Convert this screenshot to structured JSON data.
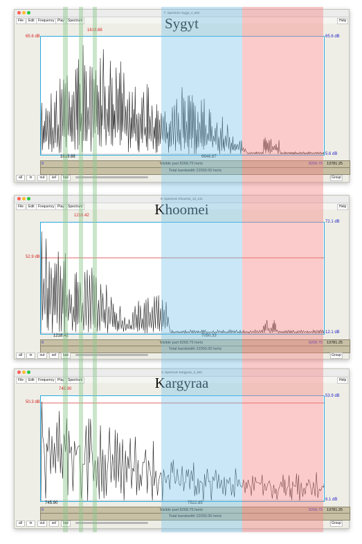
{
  "menu": [
    "File",
    "Edit",
    "Frequency",
    "Play",
    "Spectrum"
  ],
  "help_label": "Help",
  "bottom_buttons": [
    "all",
    "in",
    "out",
    "sel",
    "bak"
  ],
  "group_label": "Group",
  "overlay_colors": {
    "green": "#b8deb8",
    "blue": "#bfe4f4",
    "red": "#fbc7c7",
    "red_line": "#e08080"
  },
  "windows": [
    {
      "title": "7. Spectrum Sygyt_4_602",
      "name": "Sygyt",
      "top_left_db": "65.6 dB",
      "cursor_freq": "1619.88",
      "top_right_db": "65.6 dB",
      "bottom_right_db": "5.6 dB",
      "axis_left_freq": "1619.88",
      "axis_mid_freq": "6648.87",
      "visible_start": "0",
      "visible_part": "Visible part 8268.75 hertz",
      "visible_end": "8268.75",
      "total_end": "13781.25",
      "total_bandwidth": "Total bandwidth 22050.00 hertz"
    },
    {
      "title": "9. Spectrum Khoomei_13_141",
      "name": "Khoomei",
      "top_left_db": "52.9 dB",
      "cursor_freq": "1218.42",
      "top_right_db": "72.1 dB",
      "bottom_right_db": "12.1 dB",
      "axis_left_freq": "1218.42",
      "axis_mid_freq": "7050.33",
      "visible_start": "0",
      "visible_part": "Visible part 8268.75 hertz",
      "visible_end": "8268.75",
      "total_end": "13781.25",
      "total_bandwidth": "Total bandwidth 22050.00 hertz"
    },
    {
      "title": "3. Spectrum Kargyraa_2_840",
      "name": "Kargyraa",
      "top_left_db": "50.3 dB",
      "cursor_freq": "745.90",
      "top_right_db": "53.9 dB",
      "bottom_right_db": "6.1 dB",
      "axis_left_freq": "745.90",
      "axis_mid_freq": "7522.85",
      "visible_start": "0",
      "visible_part": "Visible part 8268.75 hertz",
      "visible_end": "8268.75",
      "total_end": "13781.25",
      "total_bandwidth": "Total bandwidth 22050.00 hertz"
    }
  ]
}
